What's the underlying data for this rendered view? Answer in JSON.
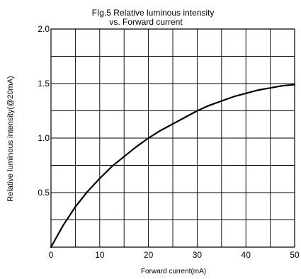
{
  "chart_data": {
    "type": "line",
    "title_line1": "FIg.5 Relative luminous intensity",
    "title_line2": "vs. Forward current",
    "xlabel": "Forward current(mA)",
    "ylabel": "Relative luminous intensity(@20mA)",
    "xlim": [
      0,
      50
    ],
    "ylim": [
      0,
      2.0
    ],
    "x_ticks": [
      0,
      10,
      20,
      30,
      40,
      50
    ],
    "y_ticks": [
      0.5,
      1.0,
      1.5,
      2.0
    ],
    "x_tick_labels": [
      "0",
      "10",
      "20",
      "30",
      "40",
      "50"
    ],
    "y_tick_labels": [
      "0.5",
      "1.0",
      "1.5",
      "2.0"
    ],
    "x_grid_step": 5,
    "y_grid_step": 0.25,
    "grid": true,
    "series": [
      {
        "x": [
          0,
          2.5,
          5,
          7.5,
          10,
          12.5,
          15,
          17.5,
          20,
          22.5,
          25,
          27.5,
          30,
          32.5,
          35,
          37.5,
          40,
          42.5,
          45,
          47.5,
          50
        ],
        "y": [
          0,
          0.2,
          0.37,
          0.51,
          0.63,
          0.74,
          0.83,
          0.92,
          1.0,
          1.07,
          1.13,
          1.19,
          1.25,
          1.3,
          1.34,
          1.38,
          1.41,
          1.44,
          1.46,
          1.48,
          1.49
        ],
        "color": "#000000"
      }
    ]
  }
}
